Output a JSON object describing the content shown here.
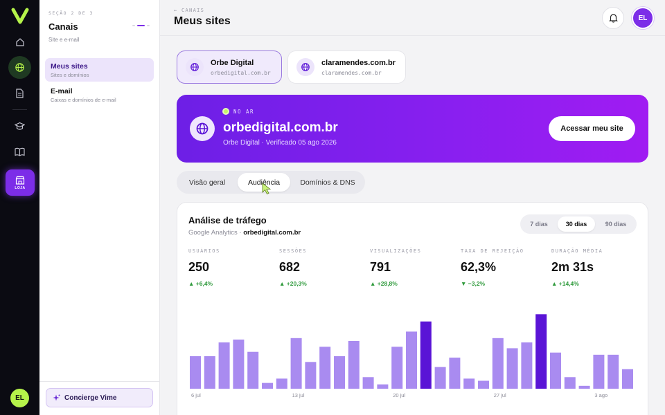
{
  "sidebar": {
    "section": "SEÇÃO 2 DE 3",
    "title": "Canais",
    "subtitle": "Site e e-mail",
    "rail_loja": "LOJA",
    "user_initials": "EL",
    "items": [
      {
        "label": "Meus sites",
        "desc": "Sites e domínios"
      },
      {
        "label": "E-mail",
        "desc": "Caixas e domínios de e-mail"
      }
    ],
    "concierge": "Concierge Vime"
  },
  "header": {
    "breadcrumb": "← CANAIS",
    "title": "Meus sites",
    "avatar": "EL"
  },
  "sites": [
    {
      "name": "Orbe Digital",
      "url": "orbedigital.com.br"
    },
    {
      "name": "claramendes.com.br",
      "url": "claramendes.com.br"
    }
  ],
  "hero": {
    "status": "NO AR",
    "domain": "orbedigital.com.br",
    "verified": "Orbe Digital · Verificado 05 ago 2026",
    "cta": "Acessar meu site"
  },
  "tabs": [
    "Visão geral",
    "Audiência",
    "Domínios & DNS"
  ],
  "analytics": {
    "title": "Análise de tráfego",
    "source_prefix": "Google Analytics · ",
    "source_domain": "orbedigital.com.br",
    "ranges": [
      "7 dias",
      "30 dias",
      "90 dias"
    ],
    "metrics": [
      {
        "label": "USUÁRIOS",
        "value": "250",
        "delta": "▲ +6,4%"
      },
      {
        "label": "SESSÕES",
        "value": "682",
        "delta": "▲ +20,3%"
      },
      {
        "label": "VISUALIZAÇÕES",
        "value": "791",
        "delta": "▲ +28,8%"
      },
      {
        "label": "TAXA DE REJEIÇÃO",
        "value": "62,3%",
        "delta": "▼ −3,2%"
      },
      {
        "label": "DURAÇÃO MÉDIA",
        "value": "2m 31s",
        "delta": "▲ +14,4%"
      }
    ]
  },
  "chart_data": {
    "type": "bar",
    "x_tick_labels": [
      "6 jul",
      "13 jul",
      "20 jul",
      "27 jul",
      "3 ago"
    ],
    "tick_indices": [
      0,
      7,
      14,
      21,
      28
    ],
    "values": [
      45,
      45,
      64,
      68,
      51,
      8,
      14,
      70,
      37,
      58,
      45,
      66,
      16,
      6,
      58,
      79,
      93,
      30,
      43,
      14,
      11,
      70,
      56,
      64,
      103,
      50,
      16,
      4,
      47,
      47,
      27
    ],
    "highlight_indices": [
      16,
      24
    ],
    "colors": {
      "bar": "#a98bf0",
      "highlight": "#5a14d6"
    },
    "ylim": [
      0,
      110
    ]
  }
}
